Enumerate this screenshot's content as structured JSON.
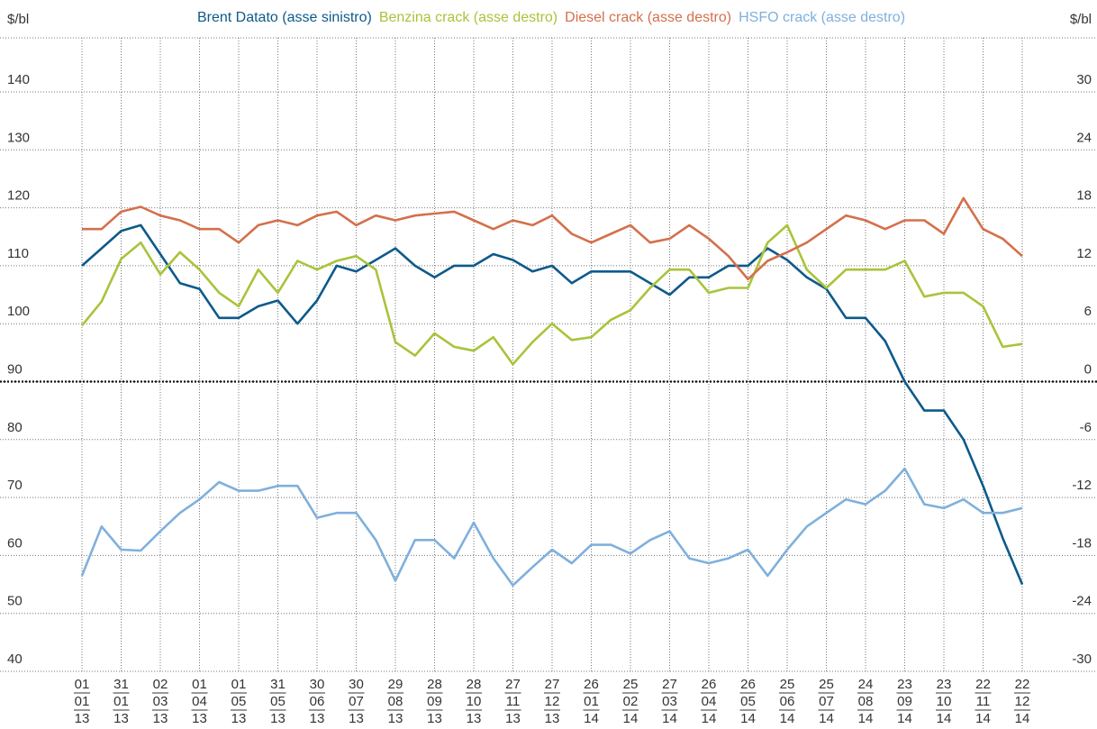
{
  "chart_data": {
    "type": "line",
    "y_label": "$/bl",
    "y2_label": "$/bl",
    "xlim": [
      "2013-01-01",
      "2014-12-22"
    ],
    "xticks": [
      {
        "value": "2013-01-01",
        "label": [
          "01",
          "01",
          "13"
        ]
      },
      {
        "value": "2013-01-31",
        "label": [
          "31",
          "01",
          "13"
        ]
      },
      {
        "value": "2013-03-02",
        "label": [
          "02",
          "03",
          "13"
        ]
      },
      {
        "value": "2013-04-01",
        "label": [
          "01",
          "04",
          "13"
        ]
      },
      {
        "value": "2013-05-01",
        "label": [
          "01",
          "05",
          "13"
        ]
      },
      {
        "value": "2013-05-31",
        "label": [
          "31",
          "05",
          "13"
        ]
      },
      {
        "value": "2013-06-30",
        "label": [
          "30",
          "06",
          "13"
        ]
      },
      {
        "value": "2013-07-30",
        "label": [
          "30",
          "07",
          "13"
        ]
      },
      {
        "value": "2013-08-29",
        "label": [
          "29",
          "08",
          "13"
        ]
      },
      {
        "value": "2013-09-28",
        "label": [
          "28",
          "09",
          "13"
        ]
      },
      {
        "value": "2013-10-28",
        "label": [
          "28",
          "10",
          "13"
        ]
      },
      {
        "value": "2013-11-27",
        "label": [
          "27",
          "11",
          "13"
        ]
      },
      {
        "value": "2013-12-27",
        "label": [
          "27",
          "12",
          "13"
        ]
      },
      {
        "value": "2014-01-26",
        "label": [
          "26",
          "01",
          "14"
        ]
      },
      {
        "value": "2014-02-25",
        "label": [
          "25",
          "02",
          "14"
        ]
      },
      {
        "value": "2014-03-27",
        "label": [
          "27",
          "03",
          "14"
        ]
      },
      {
        "value": "2014-04-26",
        "label": [
          "26",
          "04",
          "14"
        ]
      },
      {
        "value": "2014-05-26",
        "label": [
          "26",
          "05",
          "14"
        ]
      },
      {
        "value": "2014-06-25",
        "label": [
          "25",
          "06",
          "14"
        ]
      },
      {
        "value": "2014-07-25",
        "label": [
          "25",
          "07",
          "14"
        ]
      },
      {
        "value": "2014-08-24",
        "label": [
          "24",
          "08",
          "14"
        ]
      },
      {
        "value": "2014-09-23",
        "label": [
          "23",
          "09",
          "14"
        ]
      },
      {
        "value": "2014-10-23",
        "label": [
          "23",
          "10",
          "14"
        ]
      },
      {
        "value": "2014-11-22",
        "label": [
          "22",
          "11",
          "14"
        ]
      },
      {
        "value": "2014-12-22",
        "label": [
          "22",
          "12",
          "14"
        ]
      }
    ],
    "ylim": [
      40,
      150
    ],
    "yticks": [
      40,
      50,
      60,
      70,
      80,
      90,
      100,
      110,
      120,
      130,
      140
    ],
    "y2lim": [
      -30,
      36
    ],
    "y2ticks": [
      -30,
      -24,
      -18,
      -12,
      -6,
      0,
      6,
      12,
      18,
      24,
      30
    ],
    "grid": true,
    "x": [
      "2013-01-01",
      "2013-01-16",
      "2013-01-31",
      "2013-02-15",
      "2013-03-02",
      "2013-03-17",
      "2013-04-01",
      "2013-04-16",
      "2013-05-01",
      "2013-05-16",
      "2013-05-31",
      "2013-06-15",
      "2013-06-30",
      "2013-07-15",
      "2013-07-30",
      "2013-08-14",
      "2013-08-29",
      "2013-09-13",
      "2013-09-28",
      "2013-10-13",
      "2013-10-28",
      "2013-11-12",
      "2013-11-27",
      "2013-12-12",
      "2013-12-27",
      "2014-01-11",
      "2014-01-26",
      "2014-02-10",
      "2014-02-25",
      "2014-03-12",
      "2014-03-27",
      "2014-04-11",
      "2014-04-26",
      "2014-05-11",
      "2014-05-26",
      "2014-06-10",
      "2014-06-25",
      "2014-07-10",
      "2014-07-25",
      "2014-08-09",
      "2014-08-24",
      "2014-09-08",
      "2014-09-23",
      "2014-10-08",
      "2014-10-23",
      "2014-11-07",
      "2014-11-22",
      "2014-12-07",
      "2014-12-22"
    ],
    "series": [
      {
        "name": "Brent Datato (asse sinistro)",
        "color": "#0d5a8a",
        "axis": "y",
        "values": [
          110,
          113,
          116,
          117,
          112,
          107,
          106,
          101,
          101,
          103,
          104,
          100,
          104,
          110,
          109,
          111,
          113,
          110,
          108,
          110,
          110,
          112,
          111,
          109,
          110,
          107,
          109,
          109,
          109,
          107,
          105,
          108,
          108,
          110,
          110,
          113,
          111,
          108,
          106,
          101,
          101,
          97,
          90,
          85,
          85,
          80,
          72,
          63,
          55
        ]
      },
      {
        "name": "Benzina crack (asse destro)",
        "color": "#a8c43a",
        "axis": "y2",
        "values": [
          5.8,
          8.3,
          12.7,
          14.4,
          11.1,
          13.4,
          11.6,
          9.2,
          7.8,
          11.6,
          9.2,
          12.5,
          11.6,
          12.5,
          13.0,
          11.6,
          4.1,
          2.7,
          5.0,
          3.6,
          3.2,
          4.6,
          1.8,
          4.1,
          6.0,
          4.3,
          4.6,
          6.4,
          7.4,
          9.7,
          11.6,
          11.6,
          9.2,
          9.7,
          9.7,
          14.4,
          16.2,
          11.6,
          9.7,
          11.6,
          11.6,
          11.6,
          12.5,
          8.8,
          9.2,
          9.2,
          7.8,
          3.6,
          3.9
        ]
      },
      {
        "name": "Diesel crack (asse destro)",
        "color": "#d4704b",
        "axis": "y2",
        "values": [
          15.8,
          15.8,
          17.6,
          18.1,
          17.2,
          16.7,
          15.8,
          15.8,
          14.4,
          16.2,
          16.7,
          16.2,
          17.2,
          17.6,
          16.2,
          17.2,
          16.7,
          17.2,
          17.4,
          17.6,
          16.7,
          15.8,
          16.7,
          16.2,
          17.2,
          15.3,
          14.4,
          15.3,
          16.2,
          14.4,
          14.8,
          16.2,
          14.8,
          13.0,
          10.6,
          12.5,
          13.4,
          14.4,
          15.8,
          17.2,
          16.7,
          15.8,
          16.7,
          16.7,
          15.3,
          19.0,
          15.8,
          14.8,
          13.0
        ]
      },
      {
        "name": "HSFO crack (asse destro)",
        "color": "#7fb0dc",
        "axis": "y2",
        "values": [
          -20.1,
          -15.0,
          -17.4,
          -17.5,
          -15.5,
          -13.6,
          -12.2,
          -10.4,
          -11.3,
          -11.3,
          -10.8,
          -10.8,
          -14.1,
          -13.6,
          -13.6,
          -16.4,
          -20.6,
          -16.4,
          -16.4,
          -18.3,
          -14.6,
          -18.3,
          -21.1,
          -19.2,
          -17.4,
          -18.8,
          -16.9,
          -16.9,
          -17.8,
          -16.4,
          -15.5,
          -18.3,
          -18.8,
          -18.3,
          -17.4,
          -20.1,
          -17.4,
          -15.0,
          -13.6,
          -12.2,
          -12.7,
          -11.3,
          -9.0,
          -12.7,
          -13.1,
          -12.2,
          -13.6,
          -13.6,
          -13.1
        ]
      }
    ]
  }
}
